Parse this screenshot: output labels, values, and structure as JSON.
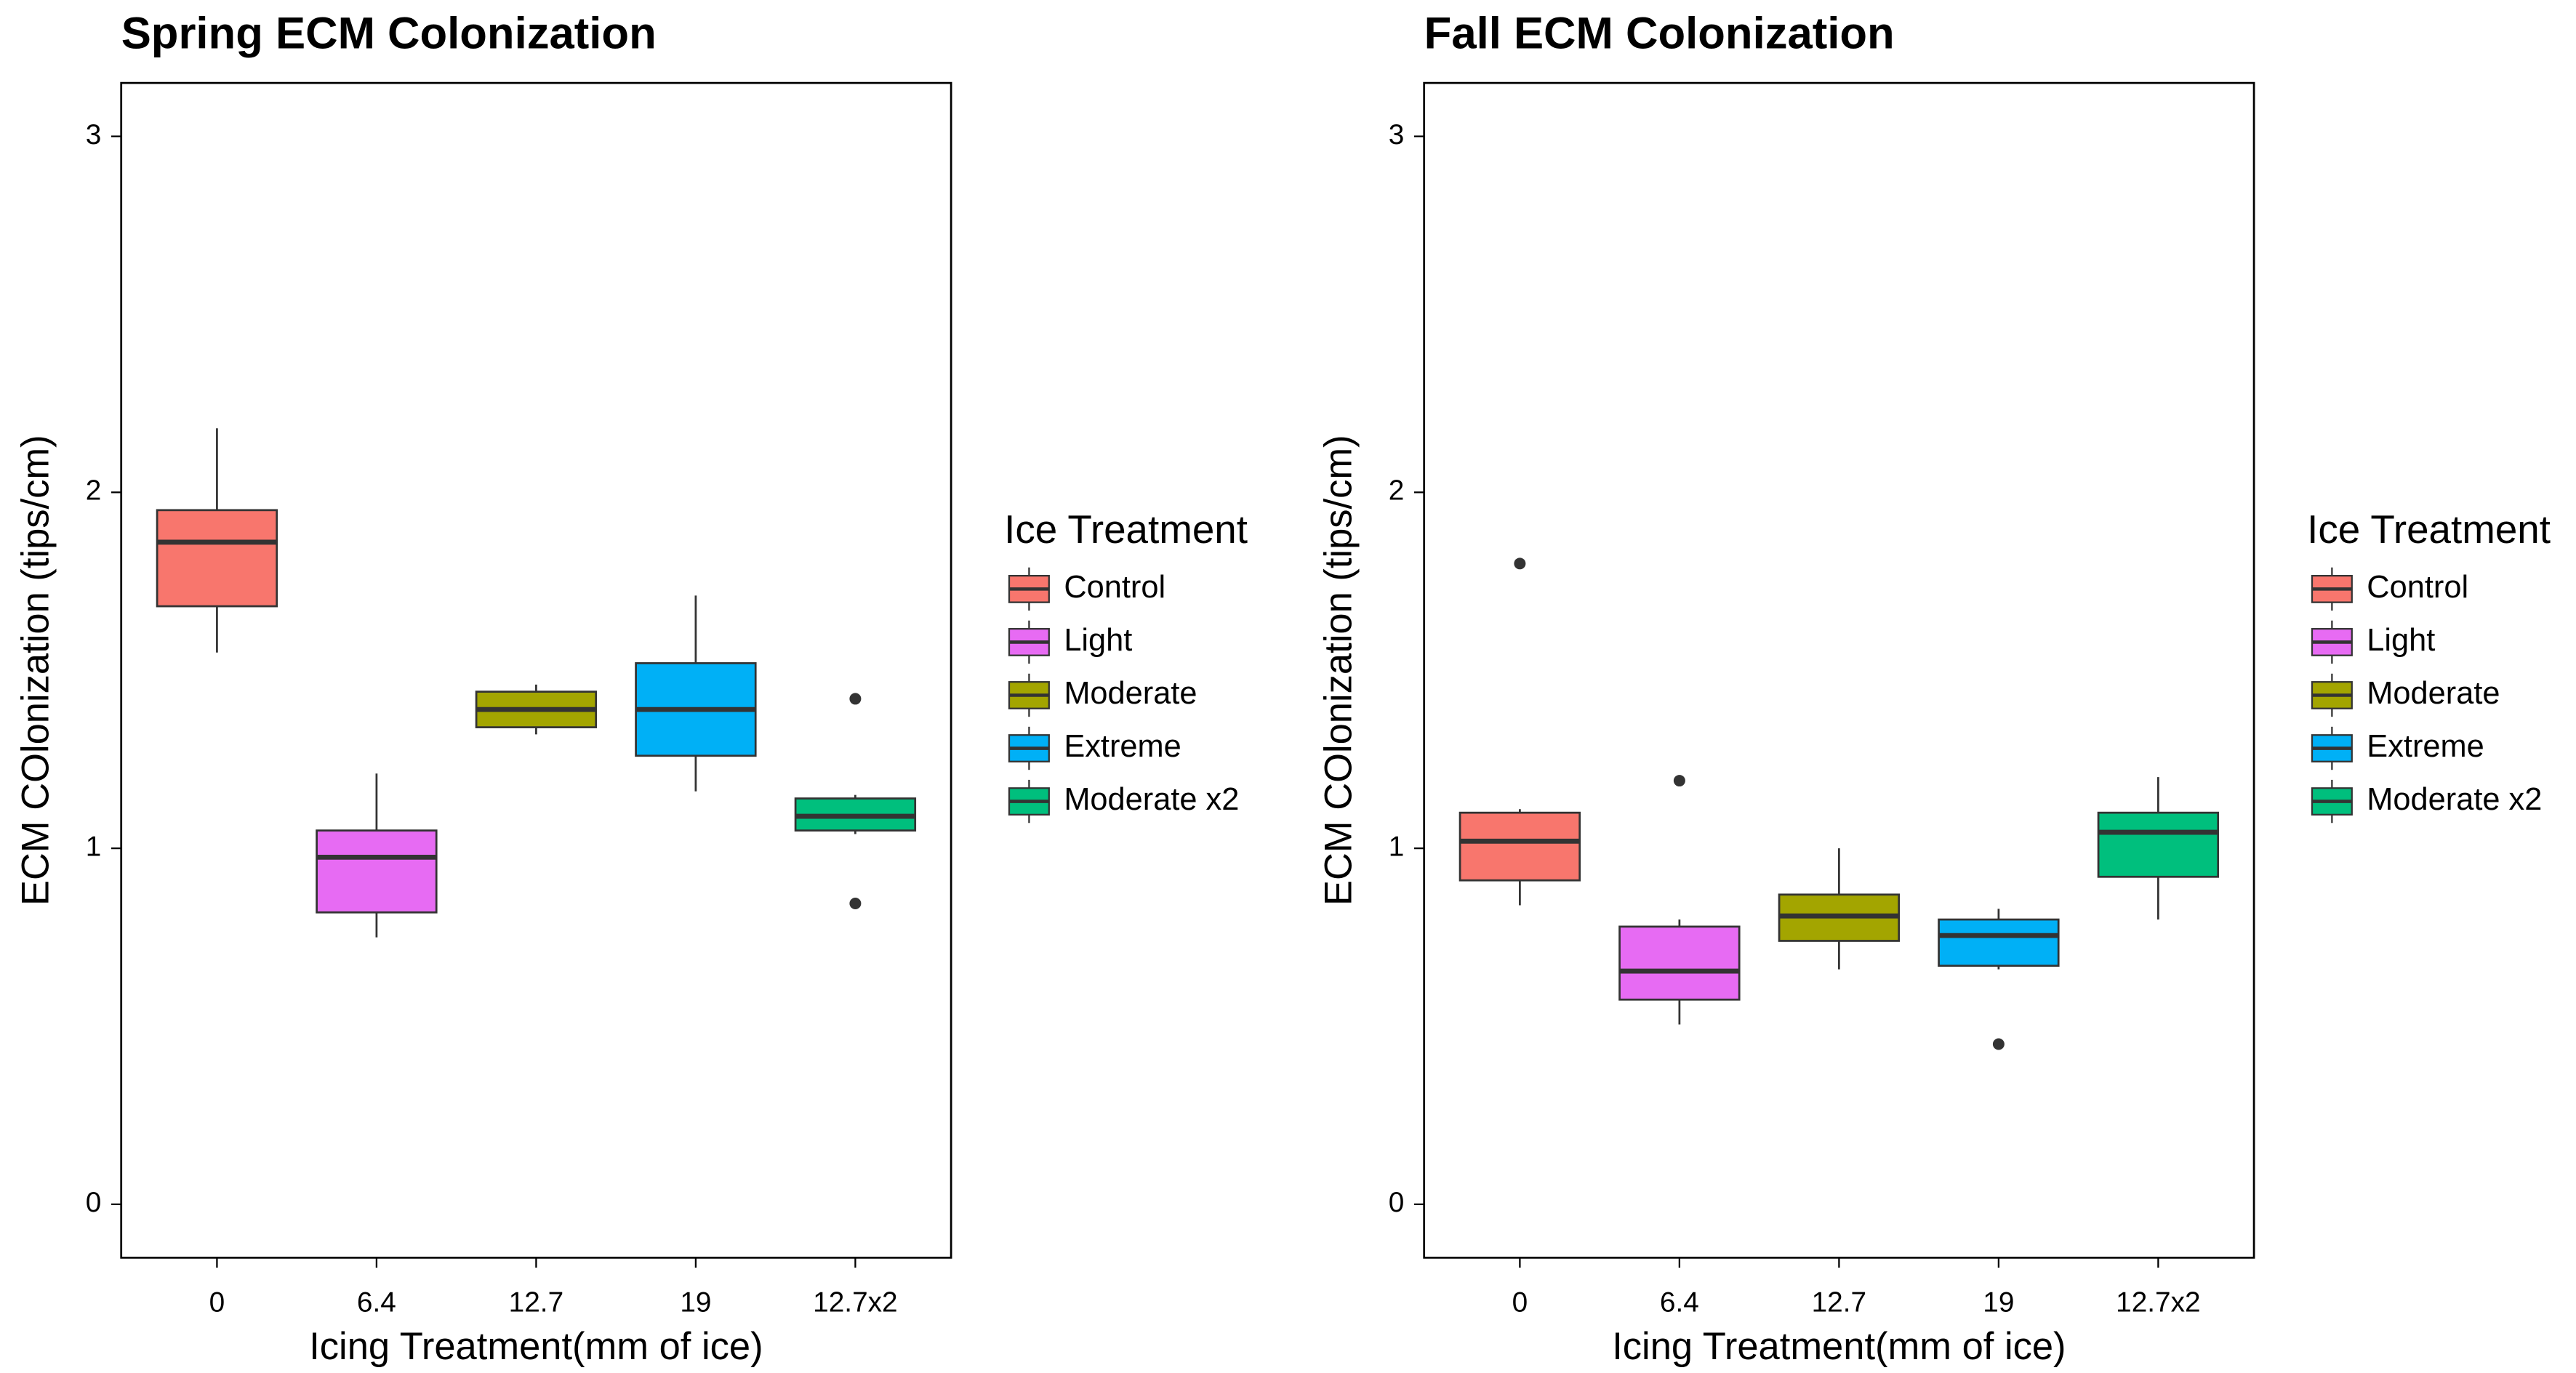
{
  "chart_data": [
    {
      "type": "box",
      "title": "Spring ECM Colonization",
      "x_label": "Icing Treatment(mm of ice)",
      "y_label": "ECM COlonization (tips/cm)",
      "categories": [
        "0",
        "6.4",
        "12.7",
        "19",
        "12.7x2"
      ],
      "legend_title": "Ice Treatment",
      "groups": [
        "Control",
        "Light",
        "Moderate",
        "Extreme",
        "Moderate x2"
      ],
      "colors": [
        "#f8766d",
        "#e76bf3",
        "#a3a500",
        "#00b0f6",
        "#00bf7d"
      ],
      "boxes": [
        {
          "min": 1.55,
          "q1": 1.68,
          "median": 1.86,
          "q3": 1.95,
          "max": 2.18,
          "outliers": []
        },
        {
          "min": 0.75,
          "q1": 0.82,
          "median": 0.975,
          "q3": 1.05,
          "max": 1.21,
          "outliers": []
        },
        {
          "min": 1.32,
          "q1": 1.34,
          "median": 1.39,
          "q3": 1.44,
          "max": 1.46,
          "outliers": []
        },
        {
          "min": 1.16,
          "q1": 1.26,
          "median": 1.39,
          "q3": 1.52,
          "max": 1.71,
          "outliers": []
        },
        {
          "min": 1.04,
          "q1": 1.05,
          "median": 1.09,
          "q3": 1.14,
          "max": 1.15,
          "outliers": [
            1.42,
            0.845
          ]
        }
      ],
      "ylim": [
        -0.15,
        3.15
      ],
      "yticks": [
        0,
        1,
        2,
        3
      ]
    },
    {
      "type": "box",
      "title": "Fall ECM Colonization",
      "x_label": "Icing Treatment(mm of ice)",
      "y_label": "ECM COlonization (tips/cm)",
      "categories": [
        "0",
        "6.4",
        "12.7",
        "19",
        "12.7x2"
      ],
      "legend_title": "Ice Treatment",
      "groups": [
        "Control",
        "Light",
        "Moderate",
        "Extreme",
        "Moderate x2"
      ],
      "colors": [
        "#f8766d",
        "#e76bf3",
        "#a3a500",
        "#00b0f6",
        "#00bf7d"
      ],
      "boxes": [
        {
          "min": 0.84,
          "q1": 0.91,
          "median": 1.02,
          "q3": 1.1,
          "max": 1.11,
          "outliers": [
            1.8
          ]
        },
        {
          "min": 0.505,
          "q1": 0.575,
          "median": 0.655,
          "q3": 0.78,
          "max": 0.8,
          "outliers": [
            1.19
          ]
        },
        {
          "min": 0.66,
          "q1": 0.74,
          "median": 0.81,
          "q3": 0.87,
          "max": 1.0,
          "outliers": []
        },
        {
          "min": 0.66,
          "q1": 0.67,
          "median": 0.755,
          "q3": 0.8,
          "max": 0.83,
          "outliers": [
            0.45
          ]
        },
        {
          "min": 0.8,
          "q1": 0.92,
          "median": 1.045,
          "q3": 1.1,
          "max": 1.2,
          "outliers": []
        }
      ],
      "ylim": [
        -0.15,
        3.15
      ],
      "yticks": [
        0,
        1,
        2,
        3
      ]
    }
  ]
}
